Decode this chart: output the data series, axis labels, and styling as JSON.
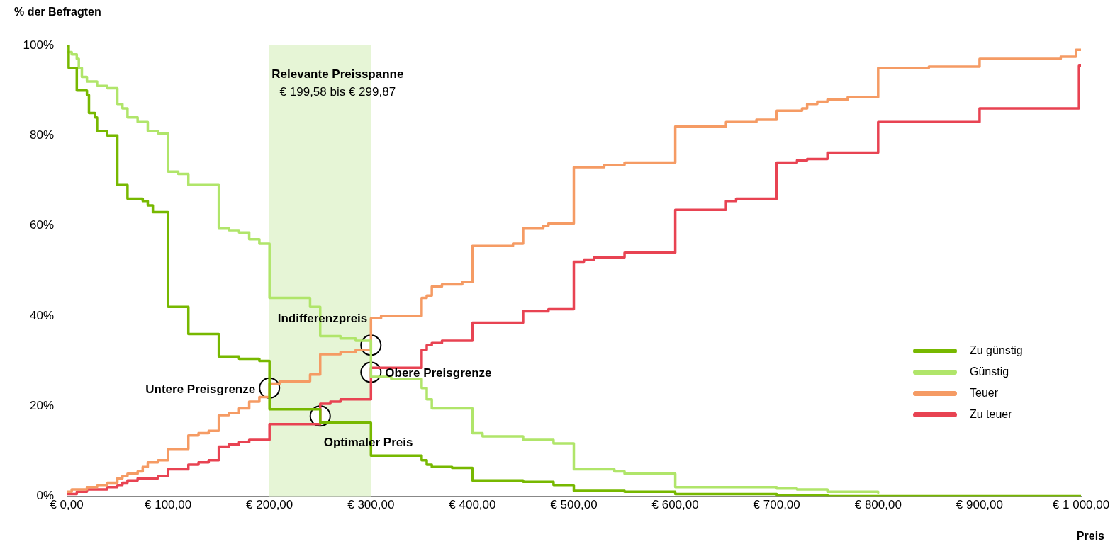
{
  "chart_data": {
    "type": "step",
    "ylabel": "% der Befragten",
    "xlabel": "Preis",
    "xlim": [
      0,
      1000
    ],
    "xticks": [
      {
        "value": 0,
        "label": "€ 0,00"
      },
      {
        "value": 100,
        "label": "€ 100,00"
      },
      {
        "value": 200,
        "label": "€ 200,00"
      },
      {
        "value": 300,
        "label": "€ 300,00"
      },
      {
        "value": 400,
        "label": "€ 400,00"
      },
      {
        "value": 500,
        "label": "€ 500,00"
      },
      {
        "value": 600,
        "label": "€ 600,00"
      },
      {
        "value": 700,
        "label": "€ 700,00"
      },
      {
        "value": 800,
        "label": "€ 800,00"
      },
      {
        "value": 900,
        "label": "€ 900,00"
      },
      {
        "value": 1000,
        "label": "€ 1 000,00"
      }
    ],
    "ylim": [
      0,
      100
    ],
    "yticks": [
      {
        "value": 0,
        "label": "0%"
      },
      {
        "value": 20,
        "label": "20%"
      },
      {
        "value": 40,
        "label": "40%"
      },
      {
        "value": 60,
        "label": "60%"
      },
      {
        "value": 80,
        "label": "80%"
      },
      {
        "value": 100,
        "label": "100%"
      }
    ],
    "grid": false,
    "legend": "right",
    "marker": "none",
    "line_style": "solid",
    "series": [
      {
        "name": "Zu günstig",
        "color": "#77b800",
        "x": [
          0,
          2,
          10,
          20,
          22,
          28,
          30,
          40,
          50,
          60,
          75,
          80,
          85,
          100,
          120,
          150,
          170,
          190,
          200,
          250,
          300,
          350,
          355,
          360,
          380,
          400,
          450,
          480,
          500,
          550,
          600,
          700,
          750,
          1000
        ],
        "values": [
          100,
          95,
          90,
          89,
          85,
          84,
          81,
          80,
          69,
          66,
          65.5,
          64.5,
          63,
          42,
          36,
          31,
          30.5,
          30,
          19.3,
          16.3,
          9,
          8,
          7,
          6.5,
          6.3,
          3.5,
          3.2,
          2.5,
          1.2,
          1,
          0.5,
          0.3,
          0,
          0
        ]
      },
      {
        "name": "Günstig",
        "color": "#b0e56a",
        "x": [
          0,
          5,
          10,
          12,
          15,
          20,
          30,
          40,
          50,
          55,
          60,
          70,
          80,
          90,
          100,
          110,
          120,
          150,
          160,
          170,
          180,
          190,
          200,
          240,
          250,
          270,
          285,
          300,
          320,
          350,
          355,
          360,
          400,
          410,
          450,
          480,
          500,
          540,
          550,
          600,
          700,
          720,
          750,
          800
        ],
        "values": [
          98.5,
          98,
          97,
          95,
          93,
          92,
          91,
          90.5,
          87,
          86,
          84,
          83,
          81,
          80.5,
          72,
          71.5,
          69,
          59.5,
          59,
          58.5,
          57,
          56,
          44,
          42,
          35.5,
          35,
          34.5,
          26.5,
          26,
          24,
          21.5,
          19.5,
          14,
          13.3,
          12.5,
          11.7,
          6,
          5.5,
          5,
          2,
          1.7,
          1.5,
          1,
          0.8
        ]
      },
      {
        "name": "Teuer",
        "color": "#f59b64",
        "x": [
          0,
          5,
          20,
          30,
          40,
          50,
          55,
          60,
          70,
          75,
          80,
          90,
          100,
          120,
          130,
          140,
          150,
          160,
          170,
          180,
          190,
          200,
          210,
          240,
          250,
          270,
          285,
          300,
          310,
          350,
          355,
          360,
          370,
          390,
          400,
          440,
          450,
          470,
          475,
          500,
          530,
          550,
          600,
          650,
          680,
          700,
          725,
          730,
          740,
          750,
          770,
          800,
          850,
          900,
          980,
          995,
          1000
        ],
        "values": [
          1,
          1.5,
          2,
          2.5,
          3,
          4,
          4.5,
          5,
          5.5,
          6.5,
          7.5,
          8,
          10.5,
          13.5,
          14,
          14.5,
          18,
          18.5,
          19.5,
          21,
          22,
          25,
          25.5,
          27,
          31.5,
          32,
          32.5,
          39.5,
          40,
          44,
          44.5,
          46.5,
          47,
          47.5,
          55.5,
          56,
          59.5,
          60,
          60.5,
          73,
          73.5,
          74,
          82,
          83,
          83.5,
          85.5,
          86,
          87,
          87.5,
          88,
          88.5,
          95,
          95.3,
          97,
          97.5,
          99,
          99
        ]
      },
      {
        "name": "Zu teuer",
        "color": "#e84352",
        "x": [
          0,
          10,
          20,
          40,
          50,
          55,
          60,
          70,
          90,
          100,
          120,
          130,
          140,
          150,
          160,
          170,
          180,
          200,
          250,
          260,
          270,
          300,
          350,
          355,
          360,
          370,
          400,
          450,
          475,
          500,
          510,
          520,
          550,
          600,
          650,
          660,
          700,
          720,
          730,
          750,
          800,
          900,
          998,
          1000
        ],
        "values": [
          0.5,
          1,
          1.5,
          2,
          2.5,
          3,
          3.5,
          4,
          4.5,
          6,
          7,
          7.5,
          8,
          11,
          11.5,
          12,
          12.5,
          16,
          20.5,
          21,
          21.5,
          28.5,
          32.5,
          33.5,
          34,
          34.5,
          38.5,
          41,
          41.5,
          52,
          52.5,
          53,
          54,
          63.5,
          65.5,
          66,
          74,
          74.5,
          74.8,
          76.2,
          83,
          86,
          95.5,
          95.5
        ]
      }
    ],
    "bands": [
      {
        "axis": "x",
        "from": 199.58,
        "to": 299.87,
        "label": "Relevante Preisspanne",
        "color": "#e6f5d6"
      }
    ],
    "annotations": [
      "€ 199,58 bis € 299,87",
      {
        "text": "Untere Preisgrenze",
        "x": 200,
        "y": 24
      },
      {
        "text": "Optimaler Preis",
        "x": 250,
        "y": 17.8
      },
      {
        "text": "Indifferenzpreis",
        "x": 300,
        "y": 33.5
      },
      {
        "text": "Obere Preisgrenze",
        "x": 300,
        "y": 27.5
      }
    ]
  }
}
